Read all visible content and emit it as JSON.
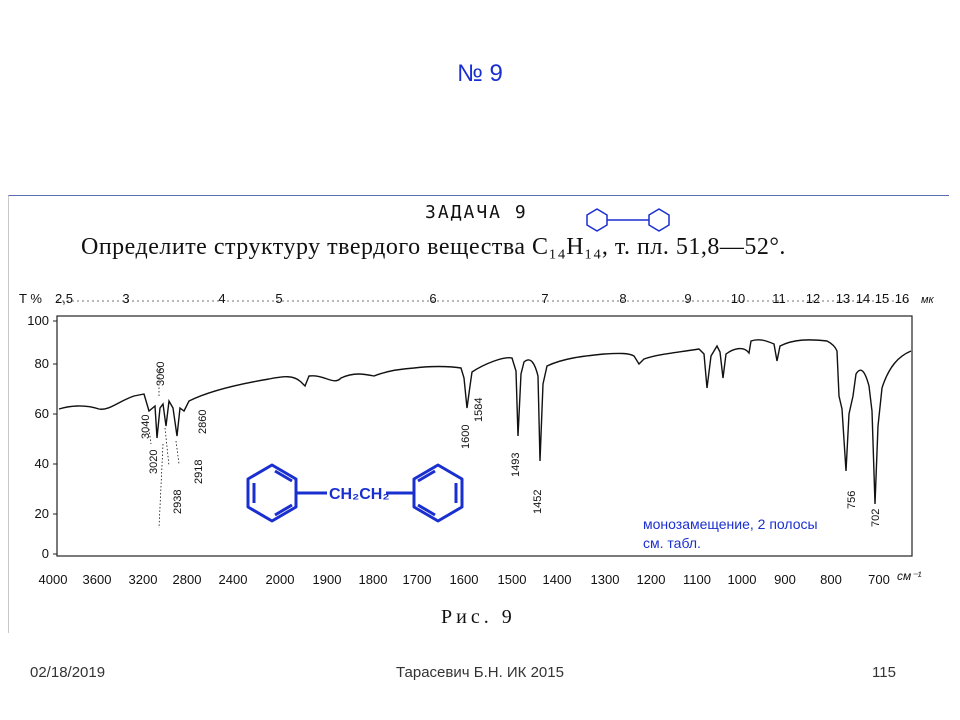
{
  "slide": {
    "title": "№ 9",
    "footer_date": "02/18/2019",
    "footer_author": "Тарасевич Б.Н.  ИК 2015",
    "footer_page": "115"
  },
  "task": {
    "heading": "ЗАДАЧА 9",
    "text": "Определите структуру твердого вещества C₁₄H₁₄, т. пл. 51,8—52°."
  },
  "spectrum": {
    "y_axis_label": "T %",
    "x_unit_bottom": "см⁻¹",
    "x_unit_top": "мк",
    "y_ticks": [
      "100",
      "80",
      "60",
      "40",
      "20",
      "0"
    ],
    "top_ticks": [
      "2,5",
      "3",
      "4",
      "5",
      "6",
      "7",
      "8",
      "9",
      "10",
      "11",
      "12",
      "13",
      "14",
      "15",
      "16"
    ],
    "bottom_ticks": [
      "4000",
      "3600",
      "3200",
      "2800",
      "2400",
      "2000",
      "1900",
      "1800",
      "1700",
      "1600",
      "1500",
      "1400",
      "1300",
      "1200",
      "1100",
      "1000",
      "900",
      "800",
      "700"
    ],
    "peak_labels": [
      "3060",
      "3040",
      "3020",
      "2938",
      "2918",
      "2860",
      "1600",
      "1584",
      "1493",
      "1452",
      "756",
      "702"
    ]
  },
  "structure": {
    "linker": "CH₂CH₂"
  },
  "note": {
    "line1": "монозамещение, 2 полосы",
    "line2": "см. табл."
  },
  "figure_caption": "Рис. 9"
}
